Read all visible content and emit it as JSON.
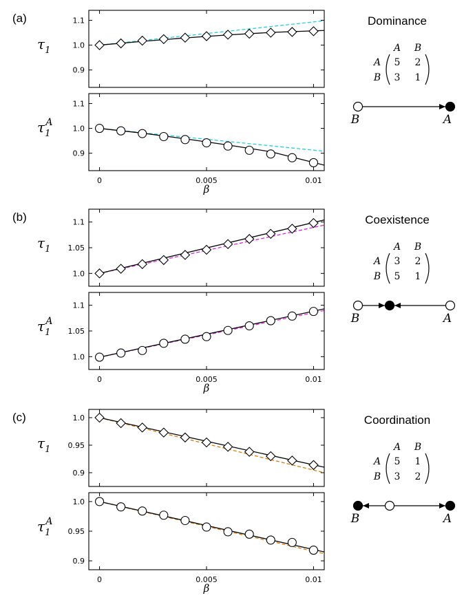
{
  "chart_data": [
    {
      "type": "line",
      "panel": "(a)",
      "title": "Dominance",
      "matrix": {
        "cols": [
          "A",
          "B"
        ],
        "rows": [
          {
            "label": "A",
            "values": [
              "5",
              "2"
            ]
          },
          {
            "label": "B",
            "values": [
              "3",
              "1"
            ]
          }
        ]
      },
      "dynamics": {
        "left_label": "B",
        "right_label": "A"
      },
      "xlabel": "β",
      "xlim": [
        -0.0005,
        0.0105
      ],
      "xticks": [
        0,
        0.005,
        0.01
      ],
      "xtick_labels": [
        "0",
        "0.005",
        "0.01"
      ],
      "subplots": [
        {
          "ylabel": "τ",
          "ysub": "1",
          "ysup": "",
          "marker": "diamond",
          "ylim": [
            0.83,
            1.14
          ],
          "yticks": [
            0.9,
            1.0,
            1.1
          ],
          "ytick_labels": [
            "0.9",
            "1.0",
            "1.1"
          ],
          "x": [
            0,
            0.001,
            0.002,
            0.003,
            0.004,
            0.005,
            0.006,
            0.007,
            0.008,
            0.009,
            0.01
          ],
          "points": [
            1.0,
            1.007,
            1.018,
            1.024,
            1.03,
            1.036,
            1.042,
            1.046,
            1.05,
            1.053,
            1.056
          ],
          "solid": [
            [
              0,
              1.0
            ],
            [
              0.002,
              1.015
            ],
            [
              0.004,
              1.029
            ],
            [
              0.006,
              1.041
            ],
            [
              0.008,
              1.051
            ],
            [
              0.0105,
              1.059
            ]
          ],
          "dashed": [
            [
              0,
              1.0
            ],
            [
              0.0105,
              1.098
            ]
          ],
          "dashed_color": "#1bd2e0"
        },
        {
          "ylabel": "τ",
          "ysub": "1",
          "ysup": "A",
          "marker": "circle",
          "ylim": [
            0.83,
            1.14
          ],
          "yticks": [
            0.9,
            1.0,
            1.1
          ],
          "ytick_labels": [
            "0.9",
            "1.0",
            "1.1"
          ],
          "x": [
            0,
            0.001,
            0.002,
            0.003,
            0.004,
            0.005,
            0.006,
            0.007,
            0.008,
            0.009,
            0.01
          ],
          "points": [
            1.0,
            0.99,
            0.979,
            0.967,
            0.955,
            0.942,
            0.929,
            0.912,
            0.897,
            0.882,
            0.862
          ],
          "solid": [
            [
              0,
              1.0
            ],
            [
              0.002,
              0.981
            ],
            [
              0.004,
              0.958
            ],
            [
              0.006,
              0.933
            ],
            [
              0.008,
              0.906
            ],
            [
              0.0105,
              0.852
            ]
          ],
          "dashed": [
            [
              0,
              1.0
            ],
            [
              0.0105,
              0.908
            ]
          ],
          "dashed_color": "#1bd2e0"
        }
      ]
    },
    {
      "type": "line",
      "panel": "(b)",
      "title": "Coexistence",
      "matrix": {
        "cols": [
          "A",
          "B"
        ],
        "rows": [
          {
            "label": "A",
            "values": [
              "3",
              "2"
            ]
          },
          {
            "label": "B",
            "values": [
              "5",
              "1"
            ]
          }
        ]
      },
      "dynamics": {
        "left_label": "B",
        "right_label": "A"
      },
      "xlabel": "β",
      "xlim": [
        -0.0005,
        0.0105
      ],
      "xticks": [
        0,
        0.005,
        0.01
      ],
      "xtick_labels": [
        "0",
        "0.005",
        "0.01"
      ],
      "subplots": [
        {
          "ylabel": "τ",
          "ysub": "1",
          "ysup": "",
          "marker": "diamond",
          "ylim": [
            0.975,
            1.125
          ],
          "yticks": [
            1.0,
            1.05,
            1.1
          ],
          "ytick_labels": [
            "1.0",
            "1.05",
            "1.1"
          ],
          "x": [
            0,
            0.001,
            0.002,
            0.003,
            0.004,
            0.005,
            0.006,
            0.007,
            0.008,
            0.009,
            0.01
          ],
          "points": [
            1.0,
            1.009,
            1.018,
            1.026,
            1.036,
            1.046,
            1.057,
            1.067,
            1.077,
            1.087,
            1.098
          ],
          "solid": [
            [
              0,
              1.0
            ],
            [
              0.0105,
              1.104
            ]
          ],
          "dashed": [
            [
              0,
              1.0
            ],
            [
              0.0105,
              1.094
            ]
          ],
          "dashed_color": "#dd22dd"
        },
        {
          "ylabel": "τ",
          "ysub": "1",
          "ysup": "A",
          "marker": "circle",
          "ylim": [
            0.975,
            1.125
          ],
          "yticks": [
            1.0,
            1.05,
            1.1
          ],
          "ytick_labels": [
            "1.0",
            "1.05",
            "1.1"
          ],
          "x": [
            0,
            0.001,
            0.002,
            0.003,
            0.004,
            0.005,
            0.006,
            0.007,
            0.008,
            0.009,
            0.01
          ],
          "points": [
            0.999,
            1.007,
            1.012,
            1.026,
            1.034,
            1.039,
            1.051,
            1.06,
            1.07,
            1.079,
            1.088
          ],
          "solid": [
            [
              0,
              0.999
            ],
            [
              0.0105,
              1.093
            ]
          ],
          "dashed": [
            [
              0,
              0.999
            ],
            [
              0.0105,
              1.09
            ]
          ],
          "dashed_color": "#dd22dd"
        }
      ]
    },
    {
      "type": "line",
      "panel": "(c)",
      "title": "Coordination",
      "matrix": {
        "cols": [
          "A",
          "B"
        ],
        "rows": [
          {
            "label": "A",
            "values": [
              "5",
              "1"
            ]
          },
          {
            "label": "B",
            "values": [
              "3",
              "2"
            ]
          }
        ]
      },
      "dynamics": {
        "left_label": "B",
        "right_label": "A"
      },
      "xlabel": "β",
      "xlim": [
        -0.0005,
        0.0105
      ],
      "xticks": [
        0,
        0.005,
        0.01
      ],
      "xtick_labels": [
        "0",
        "0.005",
        "0.01"
      ],
      "subplots": [
        {
          "ylabel": "τ",
          "ysub": "1",
          "ysup": "",
          "marker": "diamond",
          "ylim": [
            0.875,
            1.015
          ],
          "yticks": [
            0.9,
            0.95,
            1.0
          ],
          "ytick_labels": [
            "0.9",
            "0.95",
            "1.0"
          ],
          "x": [
            0,
            0.001,
            0.002,
            0.003,
            0.004,
            0.005,
            0.006,
            0.007,
            0.008,
            0.009,
            0.01
          ],
          "points": [
            1.0,
            0.99,
            0.982,
            0.973,
            0.964,
            0.955,
            0.947,
            0.938,
            0.93,
            0.922,
            0.914
          ],
          "solid": [
            [
              0,
              1.0
            ],
            [
              0.0105,
              0.91
            ]
          ],
          "dashed": [
            [
              0,
              1.0
            ],
            [
              0.0105,
              0.9
            ]
          ],
          "dashed_color": "#e07b00"
        },
        {
          "ylabel": "τ",
          "ysub": "1",
          "ysup": "A",
          "marker": "circle",
          "ylim": [
            0.885,
            1.015
          ],
          "yticks": [
            0.9,
            0.95,
            1.0
          ],
          "ytick_labels": [
            "0.9",
            "0.95",
            "1.0"
          ],
          "x": [
            0,
            0.001,
            0.002,
            0.003,
            0.004,
            0.005,
            0.006,
            0.007,
            0.008,
            0.009,
            0.01
          ],
          "points": [
            1.0,
            0.991,
            0.984,
            0.977,
            0.968,
            0.957,
            0.949,
            0.945,
            0.935,
            0.931,
            0.918
          ],
          "solid": [
            [
              0,
              1.0
            ],
            [
              0.0105,
              0.915
            ]
          ],
          "dashed": [
            [
              0,
              1.0
            ],
            [
              0.0105,
              0.912
            ]
          ],
          "dashed_color": "#e07b00"
        }
      ]
    }
  ]
}
